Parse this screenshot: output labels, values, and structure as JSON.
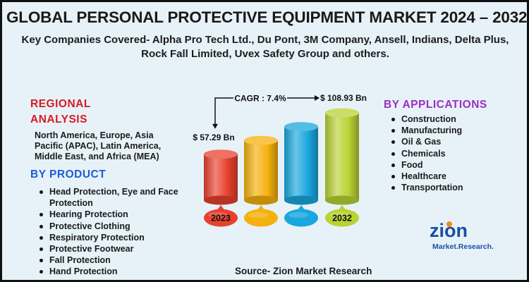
{
  "header": {
    "title": "GLOBAL PERSONAL PROTECTIVE EQUIPMENT MARKET 2024 – 2032",
    "subtitle": "Key Companies Covered- Alpha Pro Tech Ltd., Du Pont, 3M Company, Ansell, Indians, Delta Plus, Rock Fall Limited, Uvex Safety Group and others."
  },
  "regional": {
    "title_line1": "REGIONAL",
    "title_line2": "ANALYSIS",
    "text": "North America, Europe, Asia Pacific (APAC), Latin America, Middle East, and Africa (MEA)"
  },
  "product": {
    "title": "BY PRODUCT",
    "items": [
      "Head Protection, Eye and Face Protection",
      "Hearing Protection",
      "Protective Clothing",
      "Respiratory Protection",
      "Protective Footwear",
      "Fall Protection",
      "Hand Protection"
    ]
  },
  "applications": {
    "title": "BY APPLICATIONS",
    "items": [
      "Construction",
      "Manufacturing",
      "Oil & Gas",
      "Chemicals",
      "Food",
      "Healthcare",
      "Transportation"
    ]
  },
  "chart_data": {
    "type": "bar",
    "categories": [
      "2023",
      "",
      "",
      "2032"
    ],
    "values": [
      57.29,
      null,
      null,
      108.93
    ],
    "value_labels": [
      "$ 57.29 Bn",
      "",
      "",
      "$ 108.93 Bn"
    ],
    "cagr_label": "CAGR : 7.4%",
    "colors": [
      "#e8412e",
      "#f5b10e",
      "#1aa7de",
      "#b9d234"
    ]
  },
  "source": "Source- Zion Market Research",
  "logo": {
    "name": "zion",
    "tagline": "Market.Research.",
    "colors": {
      "primary": "#1b4fa0",
      "accent": "#f28c1c"
    }
  }
}
